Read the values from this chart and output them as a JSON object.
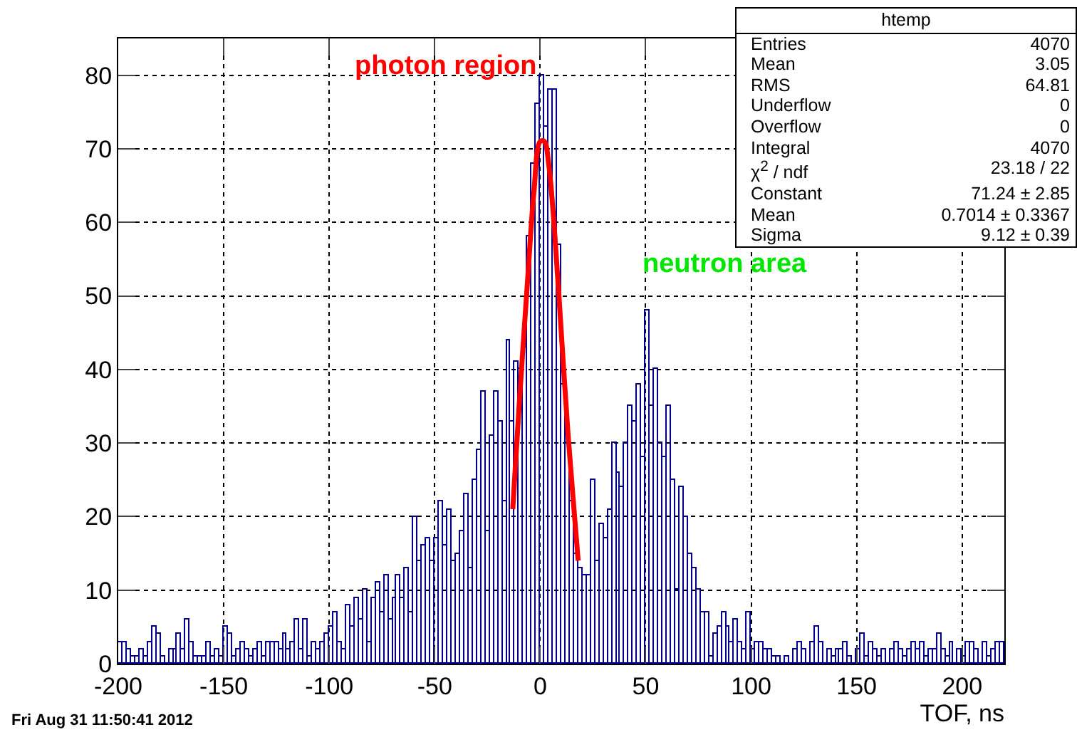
{
  "chart_data": {
    "type": "histogram",
    "xlabel": "TOF, ns",
    "bins": [
      -200,
      -198,
      -196,
      -194,
      -192,
      -190,
      -188,
      -186,
      -184,
      -182,
      -180,
      -178,
      -176,
      -174,
      -172,
      -170,
      -168,
      -166,
      -164,
      -162,
      -160,
      -158,
      -156,
      -154,
      -152,
      -150,
      -148,
      -146,
      -144,
      -142,
      -140,
      -138,
      -136,
      -134,
      -132,
      -130,
      -128,
      -126,
      -124,
      -122,
      -120,
      -118,
      -116,
      -114,
      -112,
      -110,
      -108,
      -106,
      -104,
      -102,
      -100,
      -98,
      -96,
      -94,
      -92,
      -90,
      -88,
      -86,
      -84,
      -82,
      -80,
      -78,
      -76,
      -74,
      -72,
      -70,
      -68,
      -66,
      -64,
      -62,
      -60,
      -58,
      -56,
      -54,
      -52,
      -50,
      -48,
      -46,
      -44,
      -42,
      -40,
      -38,
      -36,
      -34,
      -32,
      -30,
      -28,
      -26,
      -24,
      -22,
      -20,
      -18,
      -16,
      -14,
      -12,
      -10,
      -8,
      -6,
      -4,
      -2,
      0,
      2,
      4,
      6,
      8,
      10,
      12,
      14,
      16,
      18,
      20,
      22,
      24,
      26,
      28,
      30,
      32,
      34,
      36,
      38,
      40,
      42,
      44,
      46,
      48,
      50,
      52,
      54,
      56,
      58,
      60,
      62,
      64,
      66,
      68,
      70,
      72,
      74,
      76,
      78,
      80,
      82,
      84,
      86,
      88,
      90,
      92,
      94,
      96,
      98,
      100,
      102,
      104,
      106,
      108,
      110,
      112,
      114,
      116,
      118,
      120,
      122,
      124,
      126,
      128,
      130,
      132,
      134,
      136,
      138,
      140,
      142,
      144,
      146,
      148,
      150,
      152,
      154,
      156,
      158,
      160,
      162,
      164,
      166,
      168,
      170,
      172,
      174,
      176,
      178,
      180,
      182,
      184,
      186,
      188,
      190,
      192,
      194,
      196,
      198,
      200,
      202,
      204,
      206,
      208,
      210,
      212,
      214,
      216,
      218,
      220
    ],
    "series": [
      {
        "color": "#00008b",
        "values": [
          3,
          3,
          2,
          1,
          1,
          2,
          1,
          3,
          5,
          4,
          1,
          0,
          2,
          2,
          4,
          2,
          6,
          3,
          1,
          1,
          1,
          3,
          1,
          2,
          1,
          5,
          4,
          1,
          2,
          3,
          2,
          1,
          2,
          3,
          1,
          3,
          3,
          3,
          2,
          4,
          2,
          3,
          6,
          2,
          6,
          1,
          3,
          2,
          3,
          4,
          5,
          7,
          3,
          2,
          8,
          5,
          9,
          6,
          10,
          3,
          9,
          11,
          7,
          12,
          6,
          9,
          12,
          9,
          13,
          7,
          20,
          14,
          16,
          17,
          14,
          17,
          22,
          16,
          21,
          14,
          15,
          18,
          23,
          13,
          25,
          29,
          37,
          18,
          31,
          37,
          33,
          22,
          44,
          33,
          41,
          40,
          43,
          58,
          68,
          76,
          80,
          73,
          78,
          78,
          57,
          38,
          30,
          22,
          15,
          13,
          12,
          12,
          25,
          14,
          19,
          17,
          21,
          30,
          26,
          24,
          30,
          35,
          33,
          38,
          28,
          48,
          35,
          40,
          30,
          28,
          35,
          25,
          10,
          24,
          20,
          15,
          13,
          10,
          7,
          7,
          1,
          4,
          5,
          7,
          5,
          3,
          6,
          3,
          2,
          7,
          2,
          3,
          3,
          2,
          2,
          1,
          1,
          0,
          1,
          0,
          2,
          3,
          2,
          0,
          3,
          5,
          3,
          0,
          2,
          1,
          2,
          2,
          3,
          1,
          0,
          2,
          4,
          1,
          3,
          2,
          1,
          2,
          0,
          2,
          3,
          2,
          1,
          2,
          3,
          2,
          3,
          1,
          2,
          2,
          4,
          2,
          1,
          3,
          0,
          2,
          1,
          3,
          3,
          2,
          0,
          3,
          1,
          2,
          3,
          3
        ]
      },
      {
        "type": "line",
        "color": "#ff0000",
        "x": [
          -13,
          -10,
          -6,
          -3,
          0,
          2,
          4,
          7,
          10,
          13,
          16,
          18
        ],
        "values": [
          21,
          35,
          52,
          64,
          71,
          71,
          68,
          58,
          45,
          32,
          21,
          14
        ]
      }
    ],
    "xlim": [
      -200,
      220
    ],
    "xticks": [
      -200,
      -150,
      -100,
      -50,
      0,
      50,
      100,
      150,
      200
    ],
    "ylim": [
      0,
      85
    ],
    "yticks": [
      0,
      10,
      20,
      30,
      40,
      50,
      60,
      70,
      80
    ],
    "grid": true,
    "annotations": [
      "photon region",
      "neutron area",
      "htemp",
      "Entries\t4070",
      "Mean\t3.05",
      "RMS\t64.81",
      "Underflow\t0",
      "Overflow\t0",
      "Integral\t4070",
      "χ$^{2}$ / ndf\t23.18 / 22",
      "Constant\t71.24 ± 2.85",
      "Mean\t0.7014 ± 0.3367",
      "Sigma\t9.12 ± 0.39",
      "Fri Aug 31 11:50:41 2012"
    ]
  }
}
